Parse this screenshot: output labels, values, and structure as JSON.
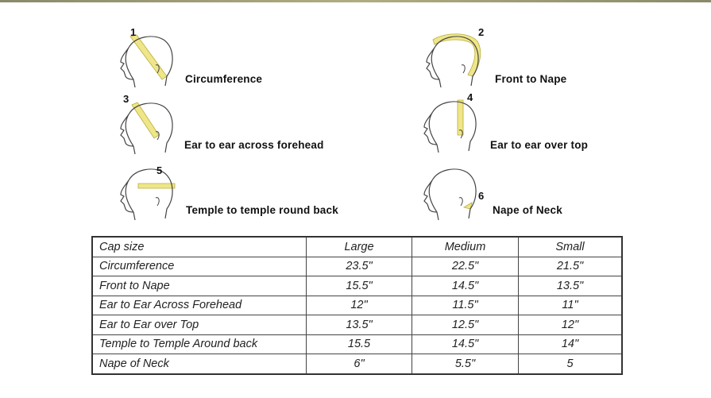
{
  "diagrams": [
    {
      "number": "1",
      "label": "Circumference"
    },
    {
      "number": "2",
      "label": "Front to Nape"
    },
    {
      "number": "3",
      "label": "Ear to ear across forehead"
    },
    {
      "number": "4",
      "label": "Ear to ear over top"
    },
    {
      "number": "5",
      "label": "Temple to temple round back"
    },
    {
      "number": "6",
      "label": "Nape of Neck"
    }
  ],
  "colors": {
    "tape": "#efe68a",
    "line": "#444444"
  },
  "table": {
    "headers": [
      "Cap size",
      "Large",
      "Medium",
      "Small"
    ],
    "rows": [
      [
        "Circumference",
        "23.5\"",
        "22.5\"",
        "21.5\""
      ],
      [
        "Front to Nape",
        "15.5\"",
        "14.5\"",
        "13.5\""
      ],
      [
        "Ear to Ear Across Forehead",
        "12\"",
        "11.5\"",
        "11\""
      ],
      [
        "Ear to Ear over Top",
        "13.5\"",
        "12.5\"",
        "12\""
      ],
      [
        "Temple to Temple Around back",
        "15.5",
        "14.5\"",
        "14\""
      ],
      [
        "Nape of Neck",
        "6\"",
        "5.5\"",
        "5"
      ]
    ]
  }
}
